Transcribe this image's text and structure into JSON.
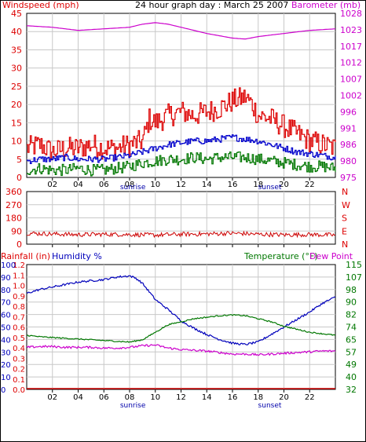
{
  "header": {
    "left_label": "Windspeed (mph)",
    "title": "24 hour graph day : March 25 2007",
    "right_label": "Barometer (mb)"
  },
  "colors": {
    "wind": "#dd0000",
    "wind_gust": "#ff0000",
    "wind_avg": "#0000cc",
    "wind_low": "#007700",
    "baro": "#cc00cc",
    "dir": "#cc0000",
    "humidity": "#0000bb",
    "temperature": "#007700",
    "dewpoint": "#cc00cc",
    "rain": "#cc0000",
    "grid": "#c8c8c8"
  },
  "x_ticks": [
    "02",
    "04",
    "06",
    "08",
    "10",
    "12",
    "14",
    "16",
    "18",
    "20",
    "22"
  ],
  "x_tick_hours": [
    2,
    4,
    6,
    8,
    10,
    12,
    14,
    16,
    18,
    20,
    22
  ],
  "sunrise_label": "sunrise",
  "sunset_label": "sunset",
  "chart_data": [
    {
      "type": "line",
      "name_ref": "wind",
      "ylabel_left": "Windspeed (mph)",
      "ylabel_right": "Barometer (mb)",
      "y_left_ticks": [
        "0",
        "5",
        "10",
        "15",
        "20",
        "25",
        "30",
        "35",
        "40",
        "45"
      ],
      "y_left_range": [
        0,
        45
      ],
      "y_right_ticks": [
        "975",
        "980",
        "986",
        "991",
        "996",
        "1002",
        "1007",
        "1012",
        "1017",
        "1023",
        "1028"
      ],
      "y_right_range": [
        975,
        1028
      ],
      "x_range": [
        0,
        24
      ],
      "series": [
        {
          "key": "gust",
          "x": [
            0,
            1,
            2,
            3,
            4,
            5,
            6,
            7,
            8,
            9,
            9.5,
            10,
            11,
            12,
            13,
            14,
            15,
            16,
            17,
            17.5,
            18,
            19,
            20,
            21,
            22,
            23,
            24
          ],
          "values": [
            8,
            9,
            7,
            8,
            8,
            9,
            8,
            8,
            9,
            10,
            16,
            15,
            17,
            18,
            17,
            18,
            19,
            21,
            22,
            20,
            17,
            16,
            14,
            12,
            10,
            9,
            8
          ]
        },
        {
          "key": "avg",
          "x": [
            0,
            1,
            2,
            3,
            4,
            5,
            6,
            7,
            8,
            9,
            10,
            11,
            12,
            13,
            14,
            15,
            16,
            17,
            18,
            19,
            20,
            21,
            22,
            23,
            24
          ],
          "values": [
            4.5,
            5,
            5,
            5.5,
            5,
            5,
            5,
            5.5,
            6,
            7,
            8,
            9,
            9.5,
            10,
            10,
            10.5,
            11,
            10.5,
            10,
            9,
            8,
            7,
            6.5,
            6,
            5.5
          ]
        },
        {
          "key": "low",
          "x": [
            0,
            1,
            2,
            3,
            4,
            5,
            6,
            7,
            8,
            9,
            10,
            11,
            12,
            13,
            14,
            15,
            16,
            17,
            18,
            19,
            20,
            21,
            22,
            23,
            24
          ],
          "values": [
            2,
            2.5,
            2,
            2,
            2.5,
            2,
            2,
            2.5,
            3,
            4,
            4.5,
            5,
            5,
            5.5,
            5,
            5.5,
            5.5,
            5.5,
            5,
            4.5,
            4,
            3.5,
            3,
            3,
            2.5
          ]
        },
        {
          "key": "baro",
          "x": [
            0,
            2,
            4,
            6,
            8,
            9,
            10,
            11,
            12,
            14,
            16,
            17,
            18,
            20,
            22,
            24
          ],
          "values": [
            1024,
            1023.5,
            1022.5,
            1023,
            1023.5,
            1024.5,
            1025,
            1024.5,
            1023.5,
            1021.5,
            1020,
            1019.7,
            1020.5,
            1021.5,
            1022.5,
            1023
          ]
        }
      ]
    },
    {
      "type": "line",
      "name_ref": "direction",
      "y_left_ticks": [
        "0",
        "90",
        "180",
        "270",
        "360"
      ],
      "y_left_range": [
        0,
        360
      ],
      "right_ticks": [
        "N",
        "W",
        "S",
        "E",
        "N"
      ],
      "x_range": [
        0,
        24
      ],
      "series": [
        {
          "key": "dir",
          "x": [
            0,
            2,
            4,
            6,
            8,
            10,
            12,
            14,
            16,
            18,
            20,
            22,
            24
          ],
          "values": [
            75,
            70,
            65,
            68,
            66,
            62,
            68,
            70,
            75,
            68,
            64,
            66,
            62
          ]
        }
      ]
    },
    {
      "type": "line",
      "name_ref": "rain-humidity-temp",
      "labels": {
        "rain": "Rainfall (in)",
        "humidity": "Humidity %",
        "temperature": "Temperature (°F)",
        "dewpoint": "Dew Point"
      },
      "y_rain_ticks": [
        "0.0",
        "0.1",
        "0.2",
        "0.3",
        "0.4",
        "0.5",
        "0.6",
        "0.7",
        "0.8",
        "0.9",
        "1.0",
        "1.1",
        "1.2"
      ],
      "y_rain_range": [
        0,
        1.2
      ],
      "y_hum_ticks": [
        "0",
        "10",
        "20",
        "30",
        "40",
        "50",
        "60",
        "70",
        "80",
        "90",
        "100"
      ],
      "y_hum_range": [
        0,
        100
      ],
      "y_temp_ticks": [
        "32",
        "40",
        "49",
        "57",
        "65",
        "74",
        "82",
        "90",
        "98",
        "107",
        "115"
      ],
      "y_temp_range": [
        32,
        115
      ],
      "x_range": [
        0,
        24
      ],
      "series": [
        {
          "key": "humidity",
          "x": [
            0,
            1,
            2,
            3,
            4,
            5,
            6,
            7,
            8,
            8.5,
            9,
            10,
            11,
            12,
            13,
            14,
            15,
            16,
            17,
            18,
            19,
            20,
            21,
            22,
            23,
            24
          ],
          "values": [
            77,
            80,
            82,
            84,
            86,
            87,
            88,
            90,
            91,
            89,
            85,
            72,
            64,
            55,
            49,
            44,
            40,
            37,
            36,
            38,
            44,
            50,
            56,
            62,
            69,
            74
          ]
        },
        {
          "key": "temperature",
          "x": [
            0,
            1,
            2,
            3,
            4,
            5,
            6,
            7,
            8,
            9,
            10,
            11,
            12,
            13,
            14,
            15,
            16,
            17,
            18,
            19,
            20,
            21,
            22,
            23,
            24
          ],
          "values": [
            68,
            67,
            66.5,
            66,
            65.5,
            65,
            64.5,
            64,
            63.5,
            65,
            70,
            75,
            77,
            79,
            80,
            81,
            81.5,
            81,
            79,
            77,
            74,
            72,
            70,
            69,
            68
          ]
        },
        {
          "key": "dewpoint",
          "x": [
            0,
            1,
            2,
            3,
            4,
            5,
            6,
            7,
            8,
            9,
            10,
            11,
            12,
            13,
            14,
            15,
            16,
            17,
            18,
            19,
            20,
            21,
            22,
            23,
            24
          ],
          "values": [
            60,
            60.5,
            60.5,
            60,
            60,
            60,
            59.5,
            59.5,
            60,
            61,
            61.5,
            59.5,
            58.5,
            58,
            57.5,
            56.5,
            55.5,
            55.5,
            55,
            55.5,
            56,
            56.5,
            57,
            57.5,
            57.5
          ]
        },
        {
          "key": "rain",
          "x": [
            0,
            24
          ],
          "values": [
            0,
            0
          ]
        }
      ]
    }
  ]
}
